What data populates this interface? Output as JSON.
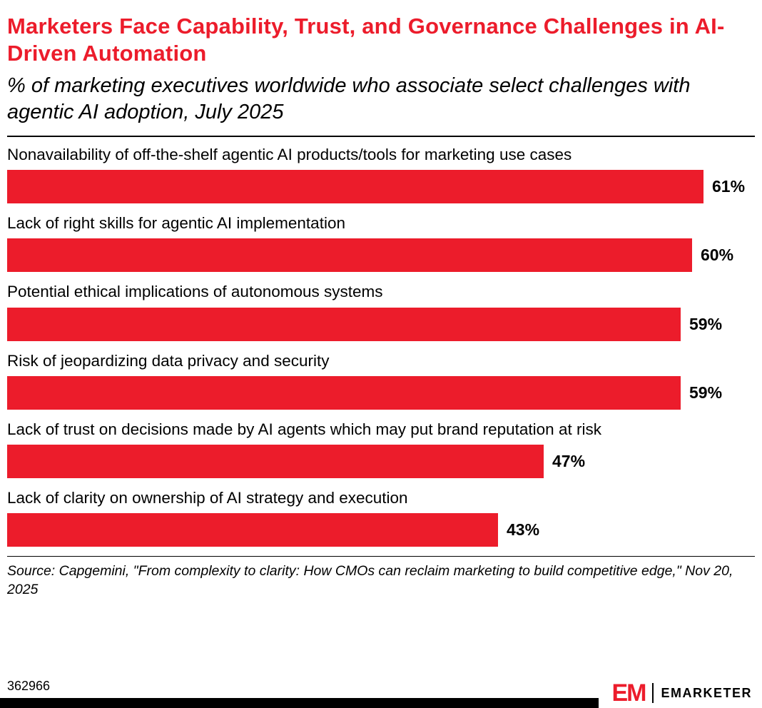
{
  "chart_data": {
    "type": "bar",
    "orientation": "horizontal",
    "title": "Marketers Face Capability, Trust, and Governance Challenges in AI-Driven Automation",
    "subtitle": "% of marketing executives worldwide who associate select challenges with agentic AI adoption, July 2025",
    "categories": [
      "Nonavailability of off-the-shelf agentic AI products/tools for marketing use cases",
      "Lack of right skills for agentic AI implementation",
      "Potential ethical implications of autonomous systems",
      "Risk of jeopardizing data privacy and security",
      "Lack of trust on decisions made by AI agents which may put brand reputation at risk",
      "Lack of clarity on ownership of AI strategy and execution"
    ],
    "values": [
      61,
      60,
      59,
      59,
      47,
      43
    ],
    "value_labels": [
      "61%",
      "60%",
      "59%",
      "59%",
      "47%",
      "43%"
    ],
    "bar_color": "#ec1c2b",
    "scale_max": 65.5,
    "grid": false,
    "legend": false
  },
  "source": "Source: Capgemini, \"From complexity to clarity: How CMOs can reclaim marketing to build competitive edge,\" Nov 20, 2025",
  "footer": {
    "chart_id": "362966",
    "logo_em": "EM",
    "brand_name": "EMARKETER"
  }
}
